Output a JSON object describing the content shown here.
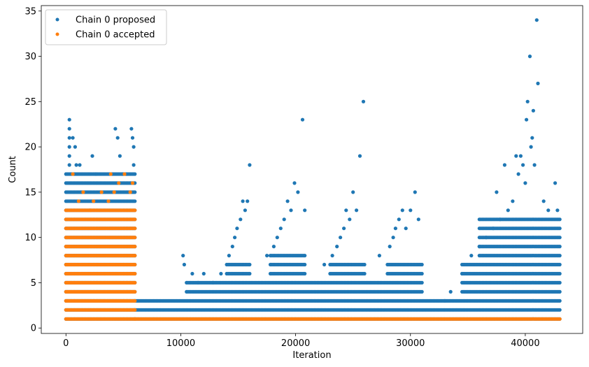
{
  "chart_data": {
    "type": "scatter",
    "title": "",
    "xlabel": "Iteration",
    "ylabel": "Count",
    "xlim": [
      -2150,
      45000
    ],
    "ylim": [
      -0.6,
      35.6
    ],
    "x_ticks": [
      0,
      10000,
      20000,
      30000,
      40000
    ],
    "x_tick_labels": [
      "0",
      "10000",
      "20000",
      "30000",
      "40000"
    ],
    "y_ticks": [
      0,
      5,
      10,
      15,
      20,
      25,
      30,
      35
    ],
    "y_tick_labels": [
      "0",
      "5",
      "10",
      "15",
      "20",
      "25",
      "30",
      "35"
    ],
    "grid": false,
    "legend_position": "upper-left",
    "series": [
      {
        "name": "Chain 0 proposed",
        "color": "#1f77b4",
        "marker": "circle",
        "segments": [
          {
            "x_start": 0,
            "x_end": 6000,
            "y_values": [
              1,
              2,
              3,
              4,
              5,
              6,
              7,
              8,
              9,
              10,
              11,
              12,
              13,
              14,
              15,
              16,
              17
            ]
          },
          {
            "x_start": 6000,
            "x_end": 43000,
            "y_values": [
              1,
              2,
              3
            ]
          },
          {
            "x_start": 10500,
            "x_end": 31000,
            "y_values": [
              4,
              5
            ]
          },
          {
            "x_start": 34500,
            "x_end": 43000,
            "y_values": [
              4,
              5,
              6,
              7
            ]
          },
          {
            "x_start": 14000,
            "x_end": 16000,
            "y_values": [
              6,
              7
            ]
          },
          {
            "x_start": 17800,
            "x_end": 20800,
            "y_values": [
              6,
              7,
              8
            ]
          },
          {
            "x_start": 23000,
            "x_end": 26000,
            "y_values": [
              6,
              7
            ]
          },
          {
            "x_start": 28000,
            "x_end": 31000,
            "y_values": [
              6,
              7
            ]
          },
          {
            "x_start": 36000,
            "x_end": 43000,
            "y_values": [
              8,
              9,
              10,
              11,
              12
            ]
          }
        ],
        "points": [
          [
            300,
            23
          ],
          [
            300,
            22
          ],
          [
            300,
            21
          ],
          [
            300,
            20
          ],
          [
            300,
            19
          ],
          [
            300,
            18
          ],
          [
            600,
            21
          ],
          [
            800,
            20
          ],
          [
            900,
            18
          ],
          [
            1200,
            18
          ],
          [
            2300,
            19
          ],
          [
            2600,
            17
          ],
          [
            4300,
            22
          ],
          [
            4500,
            21
          ],
          [
            4700,
            19
          ],
          [
            4900,
            17
          ],
          [
            5700,
            22
          ],
          [
            5800,
            21
          ],
          [
            5900,
            20
          ],
          [
            5900,
            18
          ],
          [
            10200,
            8
          ],
          [
            10300,
            7
          ],
          [
            11000,
            6
          ],
          [
            11500,
            5
          ],
          [
            12000,
            6
          ],
          [
            12800,
            5
          ],
          [
            13500,
            6
          ],
          [
            14200,
            8
          ],
          [
            14500,
            9
          ],
          [
            14700,
            10
          ],
          [
            14900,
            11
          ],
          [
            15200,
            12
          ],
          [
            15400,
            14
          ],
          [
            15600,
            13
          ],
          [
            15800,
            14
          ],
          [
            16000,
            18
          ],
          [
            17500,
            8
          ],
          [
            18100,
            9
          ],
          [
            18400,
            10
          ],
          [
            18700,
            11
          ],
          [
            19000,
            12
          ],
          [
            19300,
            14
          ],
          [
            19600,
            13
          ],
          [
            19900,
            16
          ],
          [
            20200,
            15
          ],
          [
            20600,
            23
          ],
          [
            20800,
            13
          ],
          [
            22500,
            7
          ],
          [
            23200,
            8
          ],
          [
            23600,
            9
          ],
          [
            23900,
            10
          ],
          [
            24200,
            11
          ],
          [
            24400,
            13
          ],
          [
            24700,
            12
          ],
          [
            25000,
            15
          ],
          [
            25300,
            13
          ],
          [
            25600,
            19
          ],
          [
            25900,
            25
          ],
          [
            27300,
            8
          ],
          [
            28200,
            9
          ],
          [
            28500,
            10
          ],
          [
            28700,
            11
          ],
          [
            29000,
            12
          ],
          [
            29300,
            13
          ],
          [
            29600,
            11
          ],
          [
            30000,
            13
          ],
          [
            30400,
            15
          ],
          [
            30700,
            12
          ],
          [
            33000,
            3
          ],
          [
            33500,
            4
          ],
          [
            34500,
            6
          ],
          [
            35300,
            8
          ],
          [
            36000,
            9
          ],
          [
            36600,
            10
          ],
          [
            37200,
            11
          ],
          [
            37500,
            15
          ],
          [
            37800,
            12
          ],
          [
            38200,
            18
          ],
          [
            38500,
            13
          ],
          [
            38900,
            14
          ],
          [
            39200,
            19
          ],
          [
            39400,
            17
          ],
          [
            39600,
            19
          ],
          [
            39800,
            18
          ],
          [
            40000,
            16
          ],
          [
            40100,
            23
          ],
          [
            40200,
            25
          ],
          [
            40400,
            30
          ],
          [
            40500,
            20
          ],
          [
            40600,
            21
          ],
          [
            40700,
            24
          ],
          [
            40800,
            18
          ],
          [
            41000,
            34
          ],
          [
            41100,
            27
          ],
          [
            41600,
            14
          ],
          [
            42000,
            13
          ],
          [
            42600,
            16
          ],
          [
            42800,
            13
          ]
        ]
      },
      {
        "name": "Chain 0 accepted",
        "color": "#ff7f0e",
        "marker": "circle",
        "segments": [
          {
            "x_start": 0,
            "x_end": 6000,
            "y_values": [
              1,
              2,
              3,
              4,
              5,
              6,
              7,
              8,
              9,
              10,
              11,
              12,
              13
            ]
          },
          {
            "x_start": 6000,
            "x_end": 43000,
            "y_values": [
              1
            ]
          }
        ],
        "points": [
          [
            600,
            17
          ],
          [
            1100,
            14
          ],
          [
            1500,
            15
          ],
          [
            2100,
            13
          ],
          [
            2400,
            14
          ],
          [
            3100,
            15
          ],
          [
            3700,
            14
          ],
          [
            3900,
            17
          ],
          [
            4200,
            15
          ],
          [
            4600,
            16
          ],
          [
            5100,
            17
          ],
          [
            5600,
            15
          ],
          [
            5800,
            16
          ]
        ]
      }
    ]
  }
}
